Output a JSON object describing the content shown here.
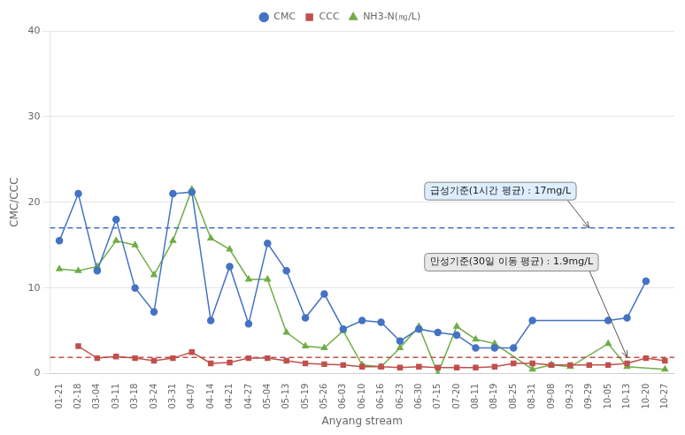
{
  "chart_data": {
    "type": "line",
    "categories": [
      "01-21",
      "02-18",
      "03-04",
      "03-11",
      "03-18",
      "03-24",
      "03-31",
      "04-07",
      "04-14",
      "04-21",
      "04-27",
      "05-04",
      "05-13",
      "05-19",
      "05-26",
      "06-03",
      "06-10",
      "06-16",
      "06-23",
      "06-30",
      "07-15",
      "07-20",
      "08-11",
      "08-19",
      "08-25",
      "08-31",
      "09-08",
      "09-23",
      "09-29",
      "10-05",
      "10-13",
      "10-20",
      "10-27"
    ],
    "series": [
      {
        "name": "CMC",
        "color": "#4472C4",
        "marker": "circle",
        "values": [
          15.5,
          21.0,
          12.0,
          18.0,
          10.0,
          7.2,
          21.0,
          21.2,
          6.2,
          12.5,
          5.8,
          15.2,
          12.0,
          6.5,
          9.3,
          5.2,
          6.2,
          6.0,
          3.8,
          5.2,
          4.8,
          4.5,
          3.0,
          3.0,
          3.0,
          6.2,
          null,
          null,
          null,
          6.2,
          6.5,
          10.8,
          null
        ]
      },
      {
        "name": "CCC",
        "color": "#C0504D",
        "marker": "square",
        "values": [
          null,
          3.2,
          1.8,
          2.0,
          1.8,
          1.5,
          1.8,
          2.5,
          1.2,
          1.3,
          1.8,
          1.8,
          1.5,
          1.2,
          1.1,
          1.0,
          0.8,
          0.8,
          0.7,
          0.8,
          0.7,
          0.7,
          0.7,
          0.8,
          1.2,
          1.2,
          1.0,
          1.0,
          1.0,
          1.0,
          1.2,
          1.8,
          1.5
        ]
      },
      {
        "name": "NH3-N(㎎/L)",
        "color": "#70AD47",
        "marker": "triangle",
        "values": [
          12.2,
          12.0,
          12.5,
          15.5,
          15.0,
          11.5,
          15.5,
          21.5,
          15.8,
          14.5,
          11.0,
          11.0,
          4.8,
          3.2,
          3.0,
          5.0,
          1.0,
          0.8,
          3.0,
          5.5,
          0.0,
          5.5,
          4.0,
          3.5,
          null,
          0.5,
          1.0,
          0.8,
          null,
          3.5,
          0.8,
          null,
          0.5
        ]
      }
    ],
    "annotations": [
      {
        "text": "급성기준(1시간 평균) : 17mg/L",
        "y": 17.0,
        "color": "#4472C4",
        "line_style": "dashed"
      },
      {
        "text": "만성기준(30일 이동 평균) : 1.9mg/L",
        "y": 1.9,
        "color": "#C0504D",
        "line_style": "dashed"
      }
    ],
    "xlabel": "Anyang stream",
    "ylabel": "CMC/CCC",
    "ylim": [
      0,
      40
    ],
    "yticks": [
      0,
      10,
      20,
      30,
      40
    ],
    "grid": "y",
    "legend": "upper center"
  }
}
